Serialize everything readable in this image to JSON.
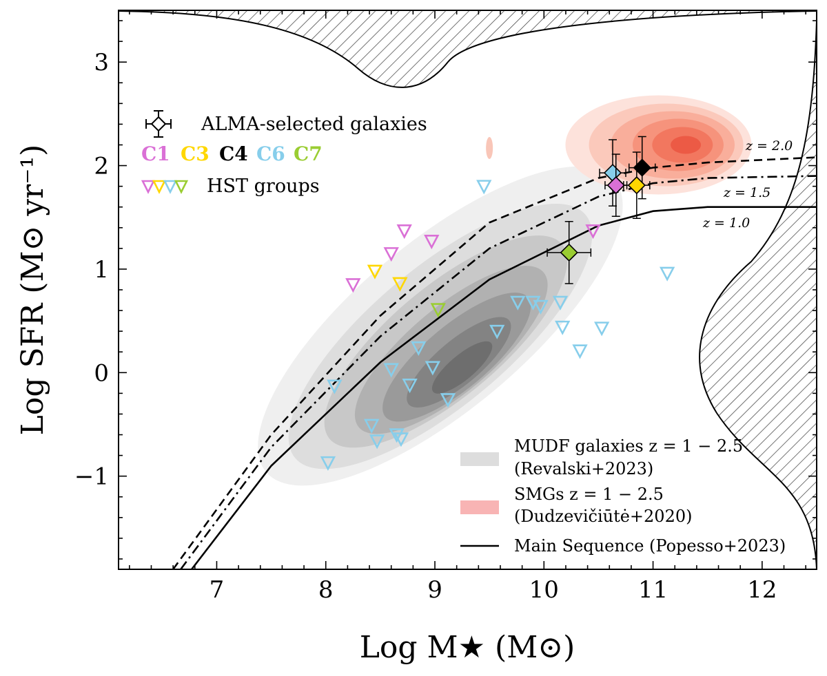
{
  "chart_data": {
    "type": "scatter",
    "xlabel": "Log M★ (M⊙)",
    "ylabel": "Log SFR (M⊙ yr⁻¹)",
    "xlim": [
      6.1,
      12.5
    ],
    "ylim": [
      -1.9,
      3.5
    ],
    "xticks": [
      7,
      8,
      9,
      10,
      11,
      12
    ],
    "yticks": [
      -1,
      0,
      1,
      2,
      3
    ],
    "xtick_labels": [
      "7",
      "8",
      "9",
      "10",
      "11",
      "12"
    ],
    "ytick_labels": [
      "−1",
      "0",
      "1",
      "2",
      "3"
    ],
    "main_sequence_curves": [
      {
        "label": "z = 1.0",
        "style": "solid",
        "points": [
          [
            6.77,
            -1.9
          ],
          [
            7.5,
            -0.9
          ],
          [
            8.5,
            0.1
          ],
          [
            9.5,
            0.9
          ],
          [
            10.5,
            1.42
          ],
          [
            11.0,
            1.56
          ],
          [
            11.5,
            1.6
          ],
          [
            12.5,
            1.6
          ]
        ]
      },
      {
        "label": "z = 1.5",
        "style": "dash-dot",
        "points": [
          [
            6.67,
            -1.9
          ],
          [
            7.5,
            -0.72
          ],
          [
            8.5,
            0.35
          ],
          [
            9.5,
            1.2
          ],
          [
            10.5,
            1.7
          ],
          [
            11.0,
            1.83
          ],
          [
            11.5,
            1.88
          ],
          [
            12.5,
            1.9
          ]
        ]
      },
      {
        "label": "z = 2.0",
        "style": "dashed",
        "points": [
          [
            6.6,
            -1.9
          ],
          [
            7.5,
            -0.6
          ],
          [
            8.5,
            0.55
          ],
          [
            9.5,
            1.45
          ],
          [
            10.5,
            1.88
          ],
          [
            11.0,
            1.98
          ],
          [
            11.5,
            2.03
          ],
          [
            12.5,
            2.08
          ]
        ]
      }
    ],
    "curve_labels": [
      "z = 2.0",
      "z = 1.5",
      "z = 1.0"
    ],
    "alma_galaxies": [
      {
        "cluster": "C6",
        "x": 10.63,
        "y": 1.93,
        "xerr": 0.12,
        "yerr": 0.32,
        "color": "#87ceeb"
      },
      {
        "cluster": "C1",
        "x": 10.66,
        "y": 1.81,
        "xerr": 0.1,
        "yerr": 0.3,
        "color": "#da70d6"
      },
      {
        "cluster": "C4",
        "x": 10.9,
        "y": 1.98,
        "xerr": 0.12,
        "yerr": 0.3,
        "color": "#000000"
      },
      {
        "cluster": "C3",
        "x": 10.85,
        "y": 1.81,
        "xerr": 0.12,
        "yerr": 0.32,
        "color": "#ffd700"
      },
      {
        "cluster": "C7",
        "x": 10.23,
        "y": 1.16,
        "xerr": 0.2,
        "yerr": 0.3,
        "color": "#9acd32"
      }
    ],
    "hst_groups": [
      {
        "cluster": "C1",
        "color": "#da70d6",
        "points": [
          [
            8.25,
            0.85
          ],
          [
            8.6,
            1.15
          ],
          [
            8.72,
            1.37
          ],
          [
            8.97,
            1.27
          ],
          [
            10.45,
            1.37
          ]
        ]
      },
      {
        "cluster": "C3",
        "color": "#ffd700",
        "points": [
          [
            8.45,
            0.98
          ],
          [
            8.68,
            0.86
          ]
        ]
      },
      {
        "cluster": "C7",
        "color": "#9acd32",
        "points": [
          [
            9.03,
            0.61
          ]
        ]
      },
      {
        "cluster": "C6",
        "color": "#87ceeb",
        "points": [
          [
            9.45,
            1.8
          ],
          [
            11.13,
            0.96
          ],
          [
            9.76,
            0.68
          ],
          [
            9.9,
            0.68
          ],
          [
            9.97,
            0.64
          ],
          [
            10.15,
            0.68
          ],
          [
            10.17,
            0.44
          ],
          [
            10.53,
            0.43
          ],
          [
            10.33,
            0.21
          ],
          [
            9.57,
            0.4
          ],
          [
            8.85,
            0.24
          ],
          [
            8.98,
            0.05
          ],
          [
            8.6,
            0.03
          ],
          [
            8.77,
            -0.12
          ],
          [
            9.12,
            -0.26
          ],
          [
            8.08,
            -0.13
          ],
          [
            8.42,
            -0.51
          ],
          [
            8.47,
            -0.66
          ],
          [
            8.65,
            -0.6
          ],
          [
            8.69,
            -0.64
          ],
          [
            8.02,
            -0.87
          ]
        ]
      }
    ],
    "legend": {
      "alma": "ALMA-selected galaxies",
      "clusters": [
        {
          "name": "C1",
          "color": "#da70d6"
        },
        {
          "name": "C3",
          "color": "#ffd700"
        },
        {
          "name": "C4",
          "color": "#000000"
        },
        {
          "name": "C6",
          "color": "#87ceeb"
        },
        {
          "name": "C7",
          "color": "#9acd32"
        }
      ],
      "hst": "HST groups",
      "mudf_line1": "MUDF galaxies z = 1 − 2.5",
      "mudf_line2": "(Revalski+2023)",
      "smg_line1": "SMGs z = 1 − 2.5",
      "smg_line2": "(Dudzevičiūtė+2020)",
      "ms": "Main Sequence (Popesso+2023)"
    },
    "colors": {
      "mudf_levels": [
        "#efefef",
        "#dddddd",
        "#c8c8c8",
        "#b1b1b1",
        "#9a9a9a",
        "#838383",
        "#6e6e6e"
      ],
      "smg_levels": [
        "#fde2db",
        "#fbc9bb",
        "#f9ae9b",
        "#f6937c",
        "#f2775f",
        "#ec5a45"
      ],
      "legend_mudf": "#dddddd",
      "legend_smg": "#f8b4b4"
    }
  }
}
